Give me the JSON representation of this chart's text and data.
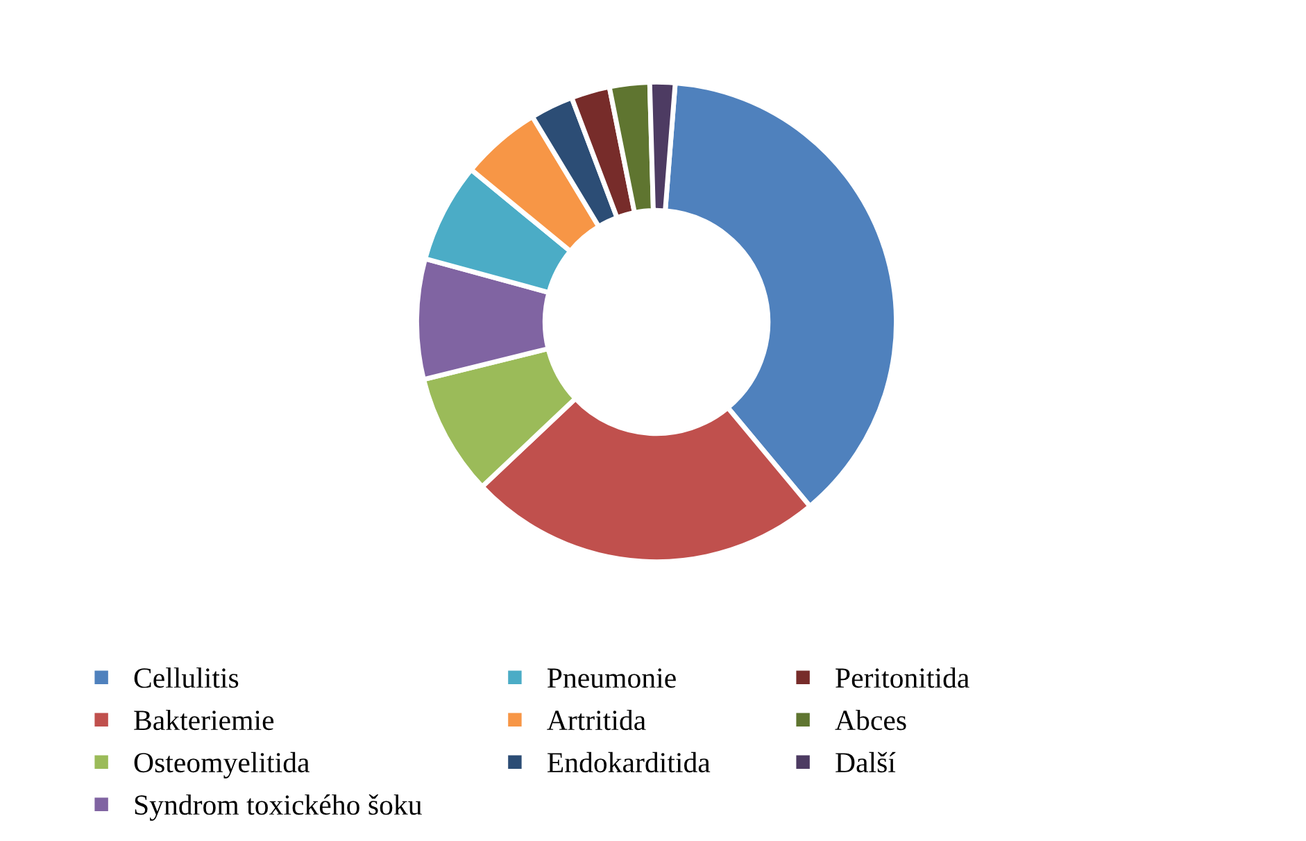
{
  "chart_data": {
    "type": "donut",
    "categories": [
      "Cellulitis",
      "Bakteriemie",
      "Osteomyelitida",
      "Syndrom toxického šoku",
      "Pneumonie",
      "Artritida",
      "Endokarditida",
      "Peritonitida",
      "Abces",
      "Další"
    ],
    "values": [
      37.7,
      24.0,
      8.2,
      8.1,
      6.7,
      5.4,
      2.9,
      2.6,
      2.7,
      1.7
    ],
    "colors": [
      "#4f81bd",
      "#c0504d",
      "#9bbb59",
      "#8064a2",
      "#4bacc6",
      "#f79646",
      "#2c4d75",
      "#772c2a",
      "#5f7530",
      "#4d3b62"
    ],
    "legend": "bottom"
  }
}
